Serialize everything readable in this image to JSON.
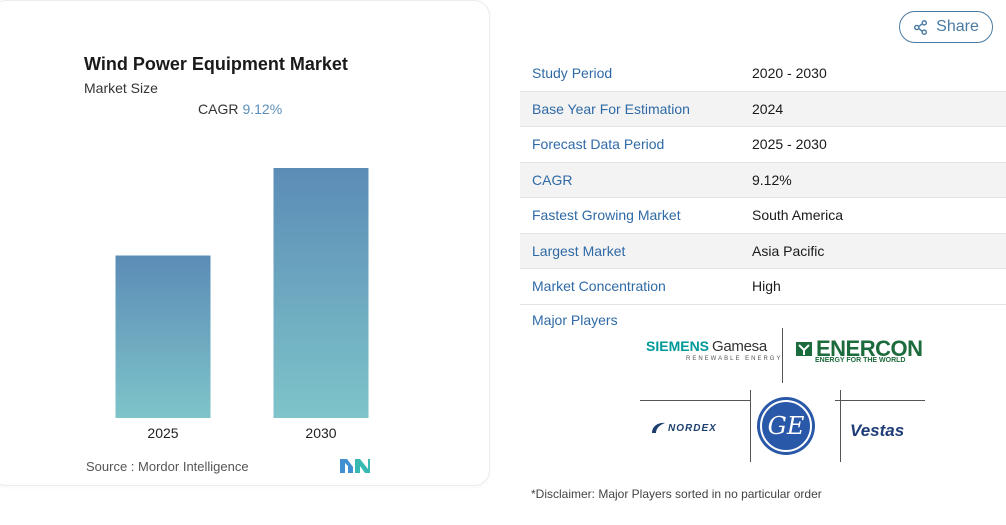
{
  "chart_data": {
    "type": "bar",
    "title": "Wind Power Equipment Market",
    "subtitle": "Market Size",
    "cagr_label": "CAGR",
    "cagr_value": "9.12%",
    "categories": [
      "2025",
      "2030"
    ],
    "values": [
      0.65,
      1.0
    ],
    "ylim": [
      0,
      1.0
    ],
    "colors": {
      "top": "#5b8cb6",
      "bottom": "#7ec4c9"
    },
    "source_label": "Source :",
    "source_name": "Mordor Intelligence",
    "grid": false
  },
  "share": {
    "label": "Share"
  },
  "table": [
    {
      "key": "Study Period",
      "value": "2020 - 2030"
    },
    {
      "key": "Base Year For Estimation",
      "value": "2024"
    },
    {
      "key": "Forecast Data Period",
      "value": "2025 - 2030"
    },
    {
      "key": "CAGR",
      "value": "9.12%"
    },
    {
      "key": "Fastest Growing Market",
      "value": "South America"
    },
    {
      "key": "Largest Market",
      "value": "Asia Pacific"
    },
    {
      "key": "Market Concentration",
      "value": "High"
    }
  ],
  "players": {
    "label": "Major Players",
    "siemens": {
      "brand": "SIEMENS",
      "name": "Gamesa",
      "sub": "RENEWABLE ENERGY"
    },
    "enercon": {
      "name": "ENERCON",
      "sub": "ENERGY FOR THE WORLD"
    },
    "nordex": {
      "name": "NORDEX"
    },
    "ge": {
      "name": "GE"
    },
    "vestas": {
      "name": "Vestas"
    }
  },
  "disclaimer": "*Disclaimer: Major Players sorted in no particular order",
  "accent": "#2f6aa6"
}
